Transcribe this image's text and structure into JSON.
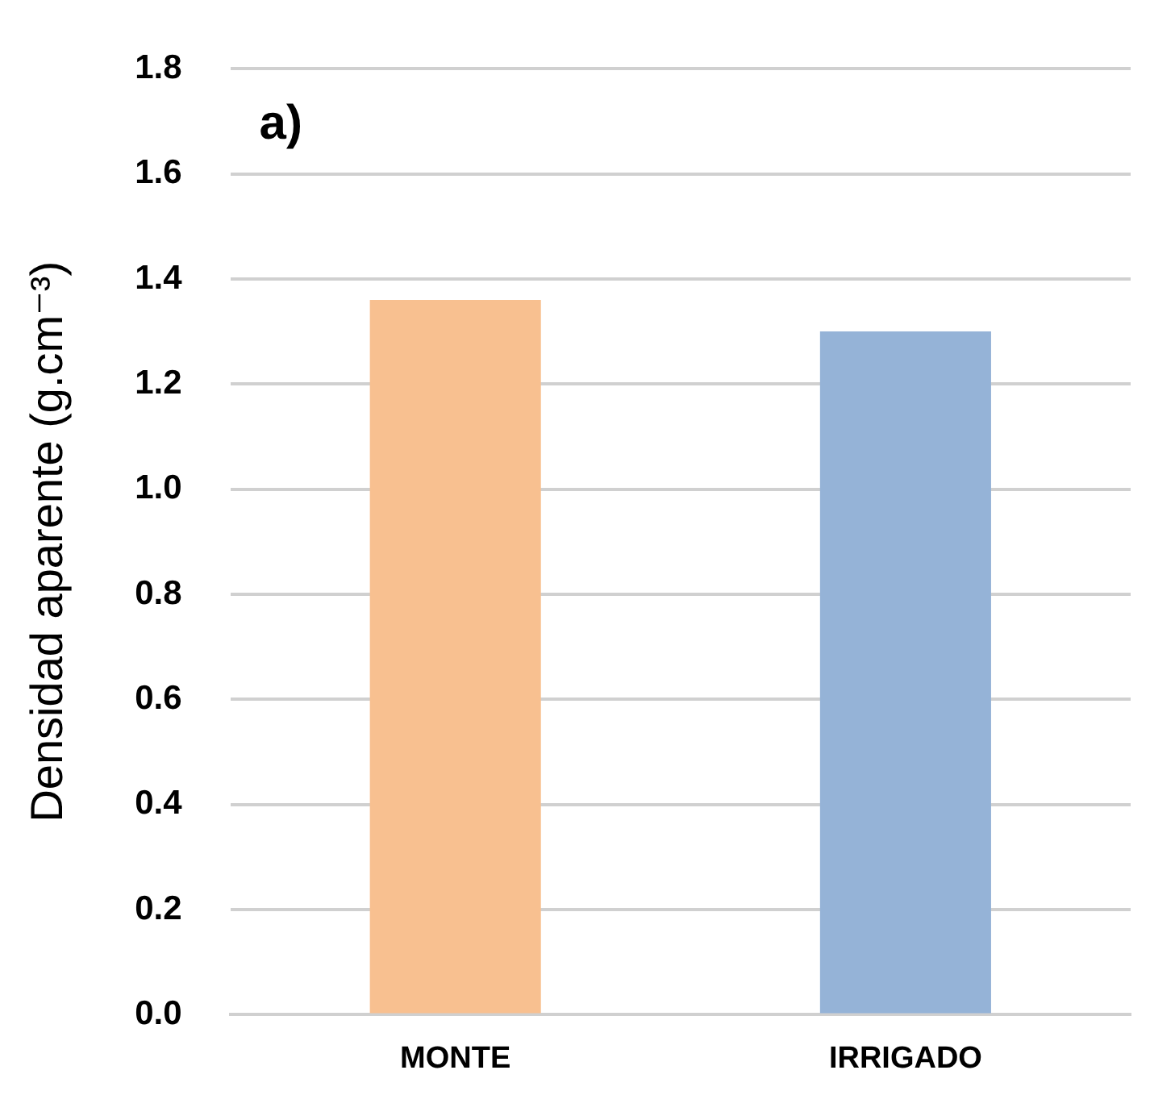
{
  "chart_data": {
    "type": "bar",
    "ylabel": "Densidad aparente (g.cm⁻³)",
    "categories": [
      "MONTE",
      "IRRIGADO"
    ],
    "values": [
      1.36,
      1.3
    ],
    "colors": [
      "#f8c090",
      "#95b3d7"
    ],
    "ylim": [
      0,
      1.8
    ],
    "yticks": [
      {
        "value": 0,
        "label": "0.0"
      },
      0.2,
      0.4,
      0.6,
      0.8,
      {
        "value": 1,
        "label": "1.0"
      },
      1.2,
      1.4,
      1.6,
      1.8
    ],
    "grid": "y",
    "annotations": [
      "a)"
    ]
  }
}
